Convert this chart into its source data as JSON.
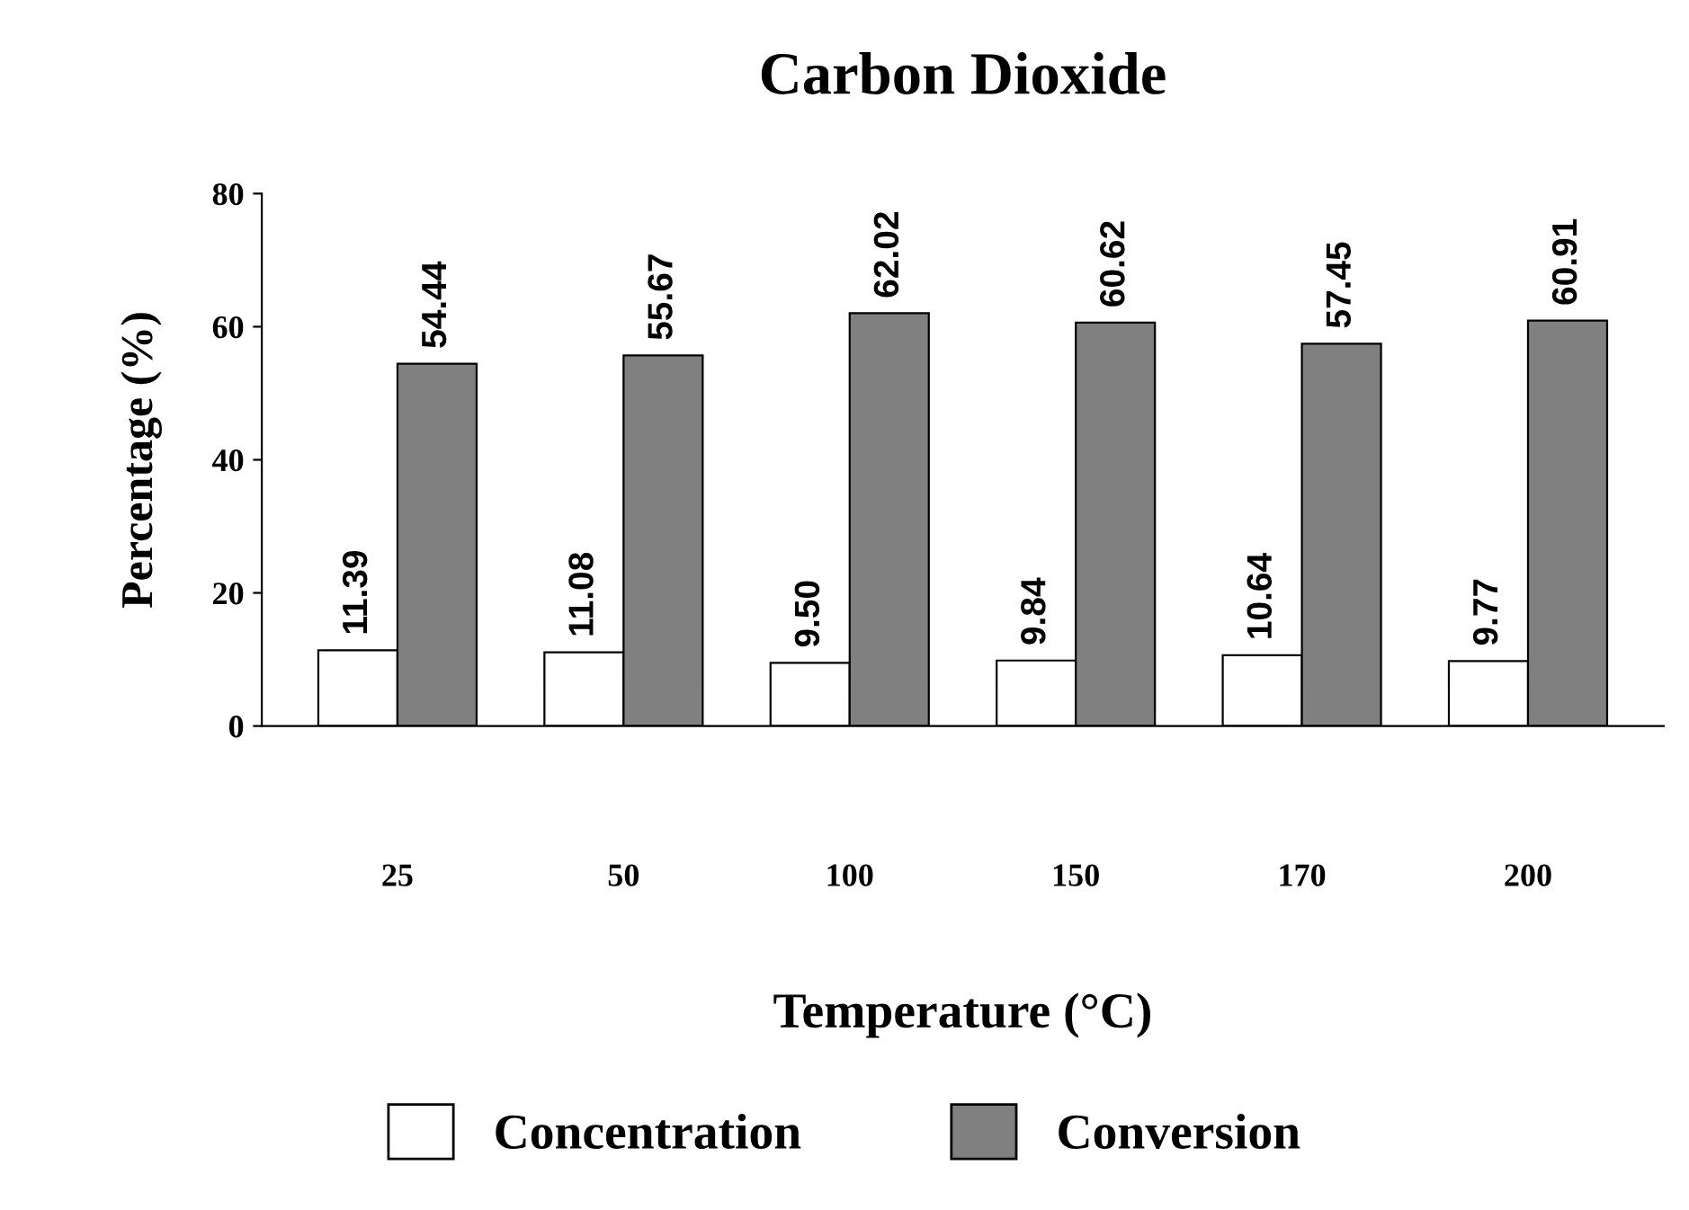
{
  "chart_data": {
    "type": "bar",
    "title": "Carbon Dioxide",
    "xlabel": "Temperature (°C)",
    "ylabel": "Percentage (%)",
    "categories": [
      "25",
      "50",
      "100",
      "150",
      "170",
      "200"
    ],
    "series": [
      {
        "name": "Concentration",
        "color": "#ffffff",
        "values": [
          11.39,
          11.08,
          9.5,
          9.84,
          10.64,
          9.77
        ],
        "value_labels": [
          "11.39",
          "11.08",
          "9.50",
          "9.84",
          "10.64",
          "9.77"
        ]
      },
      {
        "name": "Conversion",
        "color": "#808080",
        "values": [
          54.44,
          55.67,
          62.02,
          60.62,
          57.45,
          60.91
        ],
        "value_labels": [
          "54.44",
          "55.67",
          "62.02",
          "60.62",
          "57.45",
          "60.91"
        ]
      }
    ],
    "ylim": [
      0,
      80
    ],
    "yticks": [
      0,
      20,
      40,
      60,
      80
    ],
    "grid": false,
    "legend": "bottom"
  }
}
